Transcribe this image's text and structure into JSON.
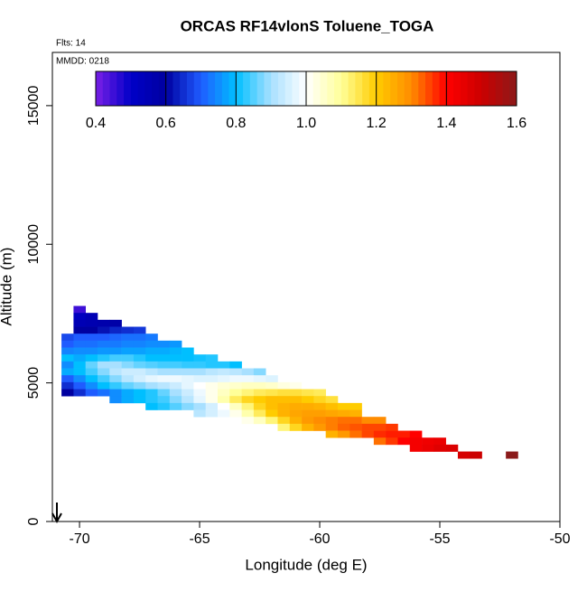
{
  "chart_data": {
    "type": "heatmap",
    "title": "ORCAS RF14vlonS Toluene_TOGA",
    "notes": [
      "Flts: 14",
      "MMDD: 0218"
    ],
    "xlabel": "Longitude (deg E)",
    "ylabel": "Altitude (m)",
    "xlim": [
      -71.13,
      -50
    ],
    "ylim": [
      0,
      16920
    ],
    "xticks": [
      -70,
      -65,
      -60,
      -55,
      -50
    ],
    "yticks": [
      0,
      5000,
      10000,
      15000
    ],
    "colorbar": {
      "lim": [
        0.4,
        1.6
      ],
      "ticks": [
        0.4,
        0.6,
        0.8,
        {
          "value": 1,
          "label": "1.0"
        },
        1.2,
        1.4,
        1.6
      ],
      "colors": [
        "#7a1fe6",
        "#0000c8",
        "#0000a0",
        "#1f5cff",
        "#00bfff",
        "#a8e0ff",
        "#ffffff",
        "#ffff99",
        "#ffcc00",
        "#ff8c00",
        "#ff0000",
        "#cc0000",
        "#8b1a1a"
      ]
    },
    "rows": [
      {
        "alt": 7650,
        "lon": [
          -70
        ],
        "values": [
          0.45
        ]
      },
      {
        "alt": 7400,
        "lon": [
          -70,
          -69.5
        ],
        "values": [
          0.52,
          0.55
        ]
      },
      {
        "alt": 7150,
        "lon": [
          -70,
          -69.5,
          -69,
          -68.5
        ],
        "values": [
          0.55,
          0.56,
          0.57,
          0.58
        ]
      },
      {
        "alt": 6900,
        "lon": [
          -70,
          -69.5,
          -69,
          -68.5,
          -68,
          -67.5
        ],
        "values": [
          0.6,
          0.6,
          0.62,
          0.64,
          0.65,
          0.66
        ]
      },
      {
        "alt": 6650,
        "lon": [
          -70.5,
          -70,
          -69.5,
          -69,
          -68.5,
          -68,
          -67.5,
          -67
        ],
        "values": [
          0.68,
          0.7,
          0.7,
          0.7,
          0.71,
          0.72,
          0.72,
          0.73
        ]
      },
      {
        "alt": 6400,
        "lon": [
          -70.5,
          -70,
          -69.5,
          -69,
          -68.5,
          -68,
          -67.5,
          -67,
          -66.5,
          -66
        ],
        "values": [
          0.7,
          0.72,
          0.72,
          0.73,
          0.73,
          0.74,
          0.74,
          0.75,
          0.75,
          0.76
        ]
      },
      {
        "alt": 6150,
        "lon": [
          -70.5,
          -70,
          -69.5,
          -69,
          -68.5,
          -68,
          -67.5,
          -67,
          -66.5,
          -66,
          -65.5
        ],
        "values": [
          0.74,
          0.75,
          0.75,
          0.76,
          0.76,
          0.77,
          0.77,
          0.78,
          0.78,
          0.79,
          0.8
        ]
      },
      {
        "alt": 5900,
        "lon": [
          -70.5,
          -70,
          -69.5,
          -69,
          -68.5,
          -68,
          -67.5,
          -67,
          -66.5,
          -66,
          -65.5,
          -65,
          -64.5
        ],
        "values": [
          0.8,
          0.78,
          0.8,
          0.82,
          0.84,
          0.84,
          0.82,
          0.8,
          0.8,
          0.8,
          0.8,
          0.81,
          0.82
        ]
      },
      {
        "alt": 5650,
        "lon": [
          -70.5,
          -70,
          -69.5,
          -69,
          -68.5,
          -68,
          -67.5,
          -67,
          -66.5,
          -66,
          -65.5,
          -65,
          -64.5,
          -64,
          -63.5
        ],
        "values": [
          0.75,
          0.8,
          0.86,
          0.9,
          0.9,
          0.88,
          0.86,
          0.85,
          0.84,
          0.84,
          0.83,
          0.83,
          0.82,
          0.82,
          0.8
        ]
      },
      {
        "alt": 5400,
        "lon": [
          -70.5,
          -70,
          -69.5,
          -69,
          -68.5,
          -68,
          -67.5,
          -67,
          -66.5,
          -66,
          -65.5,
          -65,
          -64.5,
          -64,
          -63.5,
          -63,
          -62.5
        ],
        "values": [
          0.78,
          0.8,
          0.84,
          0.88,
          0.92,
          0.94,
          0.94,
          0.92,
          0.9,
          0.9,
          0.9,
          0.9,
          0.92,
          0.93,
          0.92,
          0.9,
          0.88
        ]
      },
      {
        "alt": 5150,
        "lon": [
          -70.5,
          -70,
          -69.5,
          -69,
          -68.5,
          -68,
          -67.5,
          -67,
          -66.5,
          -66,
          -65.5,
          -65,
          -64.5,
          -64,
          -63.5,
          -63,
          -62.5,
          -62
        ],
        "values": [
          0.7,
          0.75,
          0.8,
          0.84,
          0.88,
          0.92,
          0.95,
          0.97,
          0.98,
          0.98,
          0.97,
          0.96,
          0.96,
          0.97,
          0.98,
          0.98,
          0.97,
          0.96
        ]
      },
      {
        "alt": 4900,
        "lon": [
          -70.5,
          -70,
          -69.5,
          -69,
          -68.5,
          -68,
          -67.5,
          -67,
          -66.5,
          -66,
          -65.5,
          -65,
          -64.5,
          -64,
          -63.5,
          -63,
          -62.5,
          -62,
          -61.5,
          -61,
          -60.5
        ],
        "values": [
          0.65,
          0.7,
          0.75,
          0.8,
          0.83,
          0.86,
          0.88,
          0.9,
          0.92,
          0.94,
          0.97,
          1.0,
          1.02,
          1.04,
          1.05,
          1.06,
          1.06,
          1.05,
          1.03,
          1.02,
          1.0
        ]
      },
      {
        "alt": 4650,
        "lon": [
          -70.5,
          -70,
          -69.5,
          -69,
          -68.5,
          -68,
          -67.5,
          -67,
          -66.5,
          -66,
          -65.5,
          -65,
          -64.5,
          -64,
          -63.5,
          -63,
          -62.5,
          -62,
          -61.5,
          -61,
          -60.5,
          -60
        ],
        "values": [
          0.6,
          0.65,
          0.7,
          0.72,
          0.75,
          0.78,
          0.8,
          0.82,
          0.86,
          0.9,
          0.94,
          0.98,
          1.02,
          1.06,
          1.1,
          1.12,
          1.14,
          1.15,
          1.16,
          1.16,
          1.15,
          1.14
        ]
      },
      {
        "alt": 4400,
        "lon": [
          -68.5,
          -68,
          -67.5,
          -67,
          -66.5,
          -66,
          -65.5,
          -65,
          -64.5,
          -64,
          -63.5,
          -63,
          -62.5,
          -62,
          -61.5,
          -61,
          -60.5,
          -60,
          -59.5
        ],
        "values": [
          0.75,
          0.78,
          0.8,
          0.82,
          0.84,
          0.88,
          0.92,
          0.97,
          1.02,
          1.08,
          1.14,
          1.18,
          1.2,
          1.22,
          1.22,
          1.22,
          1.2,
          1.18,
          1.16
        ]
      },
      {
        "alt": 4150,
        "lon": [
          -67,
          -66.5,
          -66,
          -65.5,
          -65,
          -64.5,
          -64,
          -63.5,
          -63,
          -62.5,
          -62,
          -61.5,
          -61,
          -60.5,
          -60,
          -59.5,
          -59,
          -58.5
        ],
        "values": [
          0.8,
          0.82,
          0.85,
          0.88,
          0.9,
          0.95,
          1.0,
          1.06,
          1.12,
          1.18,
          1.22,
          1.24,
          1.25,
          1.25,
          1.24,
          1.22,
          1.2,
          1.2
        ]
      },
      {
        "alt": 3900,
        "lon": [
          -65,
          -64.5,
          -64,
          -63.5,
          -63,
          -62.5,
          -62,
          -61.5,
          -61,
          -60.5,
          -60,
          -59.5,
          -59,
          -58.5
        ],
        "values": [
          0.92,
          0.95,
          0.98,
          1.02,
          1.08,
          1.14,
          1.2,
          1.24,
          1.26,
          1.27,
          1.27,
          1.26,
          1.25,
          1.24
        ]
      },
      {
        "alt": 3650,
        "lon": [
          -63,
          -62.5,
          -62,
          -61.5,
          -61,
          -60.5,
          -60,
          -59.5,
          -59,
          -58.5,
          -58,
          -57.5
        ],
        "values": [
          1.02,
          1.06,
          1.12,
          1.18,
          1.24,
          1.28,
          1.3,
          1.31,
          1.32,
          1.32,
          1.3,
          1.3
        ]
      },
      {
        "alt": 3400,
        "lon": [
          -61.5,
          -61,
          -60.5,
          -60,
          -59.5,
          -59,
          -58.5,
          -58,
          -57.5,
          -57
        ],
        "values": [
          1.12,
          1.18,
          1.24,
          1.28,
          1.31,
          1.33,
          1.34,
          1.35,
          1.35,
          1.36
        ]
      },
      {
        "alt": 3150,
        "lon": [
          -59.5,
          -59,
          -58.5,
          -58,
          -57.5,
          -57,
          -56.5,
          -56
        ],
        "values": [
          1.24,
          1.28,
          1.32,
          1.35,
          1.37,
          1.38,
          1.38,
          1.4
        ]
      },
      {
        "alt": 2900,
        "lon": [
          -57.5,
          -57,
          -56.5,
          -56,
          -55.5,
          -55
        ],
        "values": [
          1.32,
          1.36,
          1.4,
          1.42,
          1.43,
          1.44
        ]
      },
      {
        "alt": 2650,
        "lon": [
          -56,
          -55.5,
          -55,
          -54.5
        ],
        "values": [
          1.42,
          1.44,
          1.46,
          1.47
        ]
      },
      {
        "alt": 2400,
        "lon": [
          -54,
          -53.5,
          -52
        ],
        "values": [
          1.48,
          1.5,
          1.6
        ]
      }
    ]
  }
}
